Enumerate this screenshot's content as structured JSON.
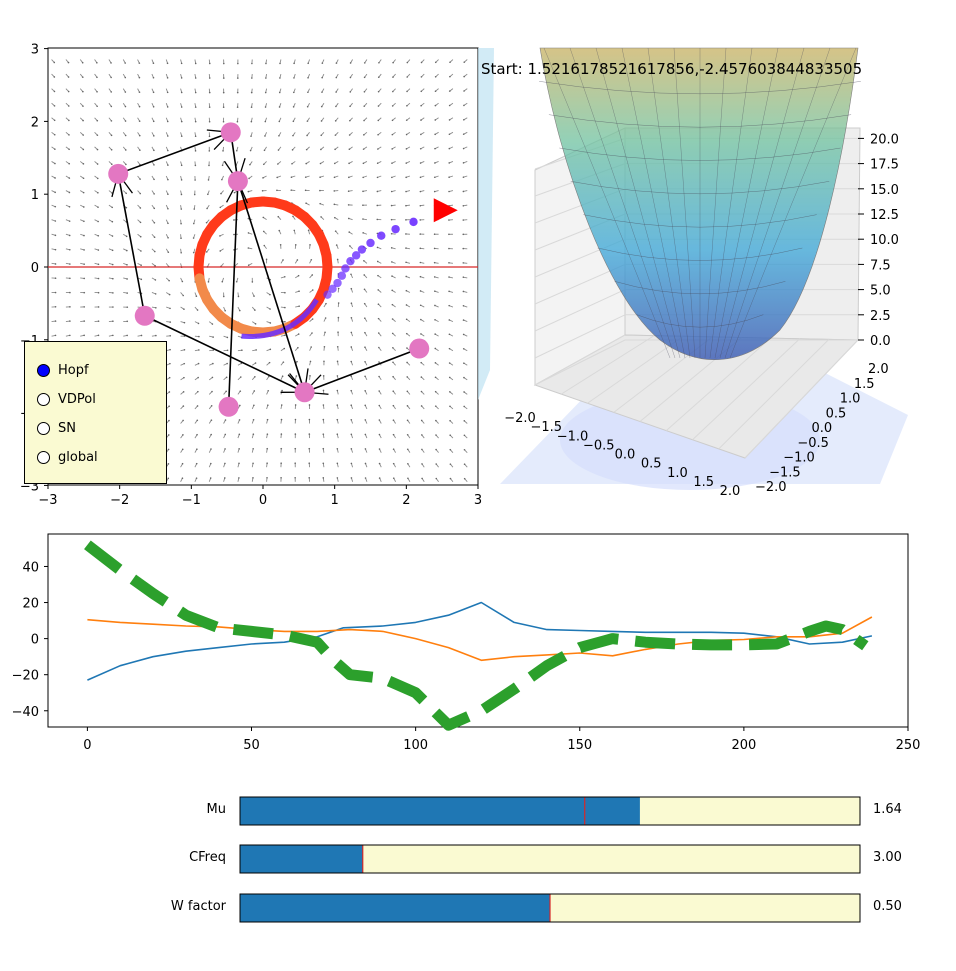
{
  "status_text": "Start: 1.5216178521617856,-2.4576038448335​05",
  "phase_plot": {
    "x_ticks": [
      "−3",
      "−2",
      "−1",
      "0",
      "1",
      "2",
      "3"
    ],
    "y_ticks": [
      "−3",
      "−2",
      "−1",
      "0",
      "1",
      "2",
      "3"
    ],
    "nodes": [
      {
        "x": -0.45,
        "y": 1.85
      },
      {
        "x": -0.35,
        "y": 1.18
      },
      {
        "x": -2.02,
        "y": 1.28
      },
      {
        "x": -1.65,
        "y": -0.67
      },
      {
        "x": 0.58,
        "y": -1.72
      },
      {
        "x": 2.18,
        "y": -1.12
      },
      {
        "x": -0.48,
        "y": -1.92
      }
    ],
    "limit_cycle_radius": 0.9,
    "marker": {
      "x": 2.55,
      "y": 0.78,
      "color": "#ff0000"
    },
    "colors": {
      "node": "#e377c2",
      "ring_outer": "#ff3a1a",
      "ring_inner": "#f28a4a",
      "trail": "#6a2cff",
      "axis_line": "#d62728"
    }
  },
  "radio": {
    "options": [
      "Hopf",
      "VDPol",
      "SN",
      "global"
    ],
    "selected": 0
  },
  "surface_plot": {
    "z_ticks": [
      "0.0",
      "2.5",
      "5.0",
      "7.5",
      "10.0",
      "12.5",
      "15.0",
      "17.5",
      "20.0"
    ],
    "x_ticks": [
      "−2.0",
      "−1.5",
      "−1.0",
      "−0.5",
      "0.0",
      "0.5",
      "1.0",
      "1.5",
      "2.0"
    ],
    "y_ticks": [
      "2.0",
      "1.5",
      "1.0",
      "0.5",
      "0.0",
      "−0.5",
      "−1.0",
      "−1.5",
      "−2.0"
    ]
  },
  "timeseries": {
    "x_ticks": [
      "0",
      "50",
      "100",
      "150",
      "200",
      "250"
    ],
    "y_ticks": [
      "40",
      "20",
      "0",
      "−20",
      "−40"
    ],
    "xlim": [
      -12,
      250
    ],
    "ylim": [
      -49,
      58
    ],
    "series": [
      {
        "color": "#1f77b4",
        "x": [
          0,
          10,
          20,
          30,
          40,
          50,
          60,
          70,
          78,
          90,
          100,
          110,
          120,
          130,
          140,
          150,
          160,
          170,
          180,
          190,
          200,
          210,
          220,
          230,
          239
        ],
        "y": [
          -23,
          -15,
          -10,
          -7,
          -5,
          -3,
          -2,
          1,
          6,
          7,
          9,
          13,
          20,
          9,
          5,
          4.5,
          4,
          3.5,
          3.5,
          3.5,
          3,
          1,
          -3,
          -2,
          1.5
        ]
      },
      {
        "color": "#ff7f0e",
        "x": [
          0,
          10,
          20,
          30,
          40,
          50,
          60,
          70,
          80,
          90,
          100,
          110,
          120,
          130,
          140,
          150,
          160,
          170,
          180,
          190,
          200,
          210,
          220,
          230,
          239
        ],
        "y": [
          10.5,
          9,
          8,
          7,
          6.5,
          5,
          4,
          4,
          5,
          4,
          0,
          -5,
          -12,
          -10,
          -9,
          -8,
          -9.5,
          -6,
          -3,
          -1,
          -0.5,
          1,
          1,
          3,
          12
        ]
      },
      {
        "color": "#2ca02c",
        "dashed": true,
        "x": [
          0,
          10,
          20,
          30,
          40,
          50,
          60,
          70,
          75,
          80,
          90,
          100,
          110,
          120,
          130,
          140,
          150,
          160,
          170,
          180,
          190,
          200,
          210,
          220,
          225,
          230,
          237
        ],
        "y": [
          52,
          38,
          25,
          13,
          6,
          4,
          2,
          -2,
          -12,
          -20,
          -22,
          -30,
          -48,
          -40,
          -28,
          -15,
          -5,
          0,
          -2,
          -3,
          -3.5,
          -3.5,
          -3,
          4,
          7,
          5,
          -4
        ]
      }
    ]
  },
  "sliders": [
    {
      "label": "Mu",
      "value_text": "1.64",
      "fill": 0.645,
      "marker": 0.556
    },
    {
      "label": "CFreq",
      "value_text": "3.00",
      "fill": 0.198,
      "marker": 0.198
    },
    {
      "label": "W factor",
      "value_text": "0.50",
      "fill": 0.5,
      "marker": 0.5
    }
  ],
  "colors": {
    "slider_fill": "#1f77b4",
    "slider_track": "#fafad2",
    "slider_marker": "#d62728"
  }
}
